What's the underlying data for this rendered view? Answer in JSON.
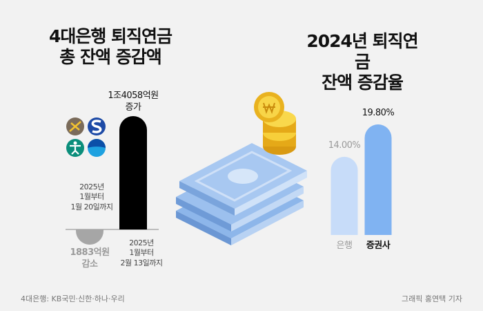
{
  "chart_data": [
    {
      "type": "bar",
      "title": "4대은행 퇴직연금\n총 잔액 증감액",
      "categories": [
        "2025년\n1월부터\n1월 20일까지",
        "2025년\n1월부터\n2월 13일까지"
      ],
      "values": [
        -1883,
        14058
      ],
      "value_labels": [
        "1883억원\n감소",
        "1조4058억원\n증가"
      ],
      "colors": [
        "#a6a6a6",
        "#000000"
      ]
    },
    {
      "type": "bar",
      "title": "2024년 퇴직연금\n잔액 증감율",
      "categories": [
        "은행",
        "증권사"
      ],
      "values": [
        14.0,
        19.8
      ],
      "value_labels": [
        "14.00%",
        "19.80%"
      ],
      "colors": [
        "#c7dcf9",
        "#80b3f2"
      ]
    }
  ],
  "footer": {
    "note": "4대은행: KB국민·신한·하나·우리",
    "credit": "그래픽 홍연택 기자"
  }
}
